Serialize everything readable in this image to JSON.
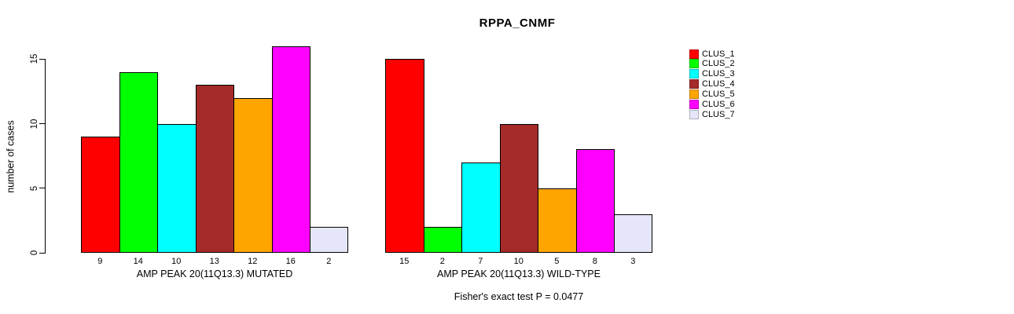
{
  "chart_data": {
    "type": "bar",
    "title": "RPPA_CNMF",
    "ylabel": "number of cases",
    "ylim": [
      0,
      15
    ],
    "yticks": [
      0,
      5,
      10,
      15
    ],
    "grid": false,
    "legend_position": "right",
    "clusters": [
      {
        "name": "CLUS_1",
        "color": "#FF0000"
      },
      {
        "name": "CLUS_2",
        "color": "#00FF00"
      },
      {
        "name": "CLUS_3",
        "color": "#00FFFF"
      },
      {
        "name": "CLUS_4",
        "color": "#A52A2A"
      },
      {
        "name": "CLUS_5",
        "color": "#FFA500"
      },
      {
        "name": "CLUS_6",
        "color": "#FF00FF"
      },
      {
        "name": "CLUS_7",
        "color": "#E6E6FA"
      }
    ],
    "groups": [
      {
        "label": "AMP PEAK 20(11Q13.3) MUTATED",
        "values": [
          9,
          14,
          10,
          13,
          12,
          16,
          2
        ]
      },
      {
        "label": "AMP PEAK 20(11Q13.3) WILD-TYPE",
        "values": [
          15,
          2,
          7,
          10,
          5,
          8,
          3
        ]
      }
    ],
    "footnote": "Fisher's exact test P = 0.0477"
  }
}
